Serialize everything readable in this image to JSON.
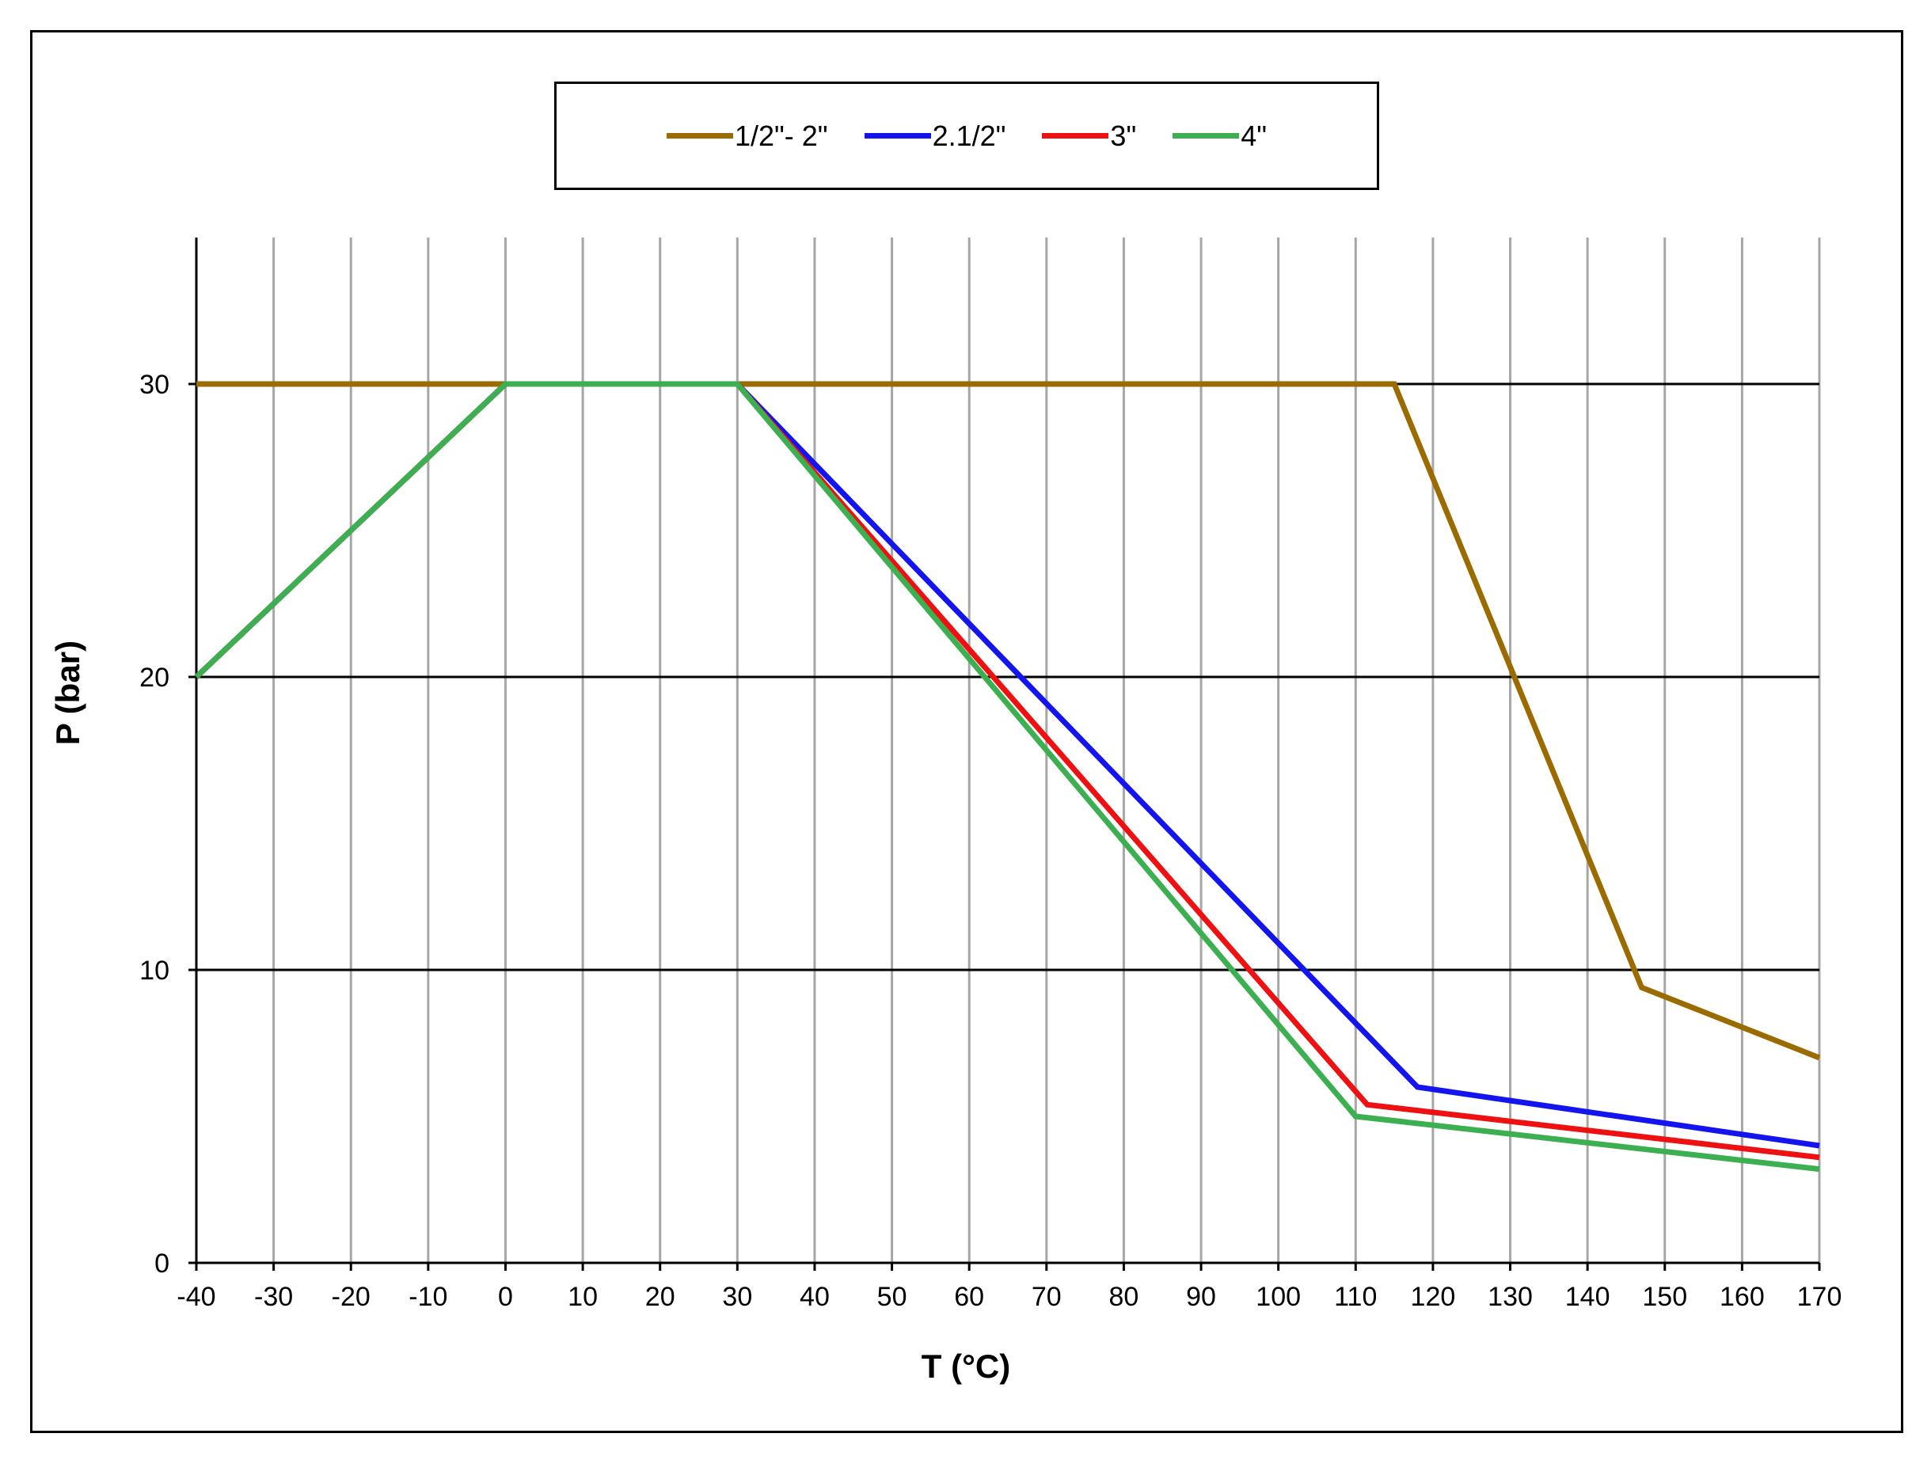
{
  "chart_data": {
    "type": "line",
    "title": "",
    "xlabel": "T (°C)",
    "ylabel": "P (bar)",
    "xlim": [
      -40,
      170
    ],
    "ylim": [
      0,
      35
    ],
    "x_ticks": [
      -40,
      -30,
      -20,
      -10,
      0,
      10,
      20,
      30,
      40,
      50,
      60,
      70,
      80,
      90,
      100,
      110,
      120,
      130,
      140,
      150,
      160,
      170
    ],
    "y_ticks": [
      0,
      10,
      20,
      30
    ],
    "vertical_grid": true,
    "horizontal_grid": true,
    "legend_position": "top-center",
    "series": [
      {
        "name": "1/2\"- 2\"",
        "color": "#9C6B00",
        "points": [
          [
            -40,
            30
          ],
          [
            115,
            30
          ],
          [
            147,
            9.4
          ],
          [
            170,
            7
          ]
        ]
      },
      {
        "name": "2.1/2\"",
        "color": "#1414EE",
        "points": [
          [
            -40,
            20
          ],
          [
            0,
            30
          ],
          [
            30,
            30
          ],
          [
            118,
            6
          ],
          [
            170,
            4
          ]
        ]
      },
      {
        "name": "3\"",
        "color": "#EE1111",
        "points": [
          [
            -40,
            20
          ],
          [
            0,
            30
          ],
          [
            30,
            30
          ],
          [
            111.5,
            5.4
          ],
          [
            170,
            3.6
          ]
        ]
      },
      {
        "name": "4\"",
        "color": "#3CAF50",
        "points": [
          [
            -40,
            20
          ],
          [
            0,
            30
          ],
          [
            30,
            30
          ],
          [
            110,
            5
          ],
          [
            170,
            3.2
          ]
        ]
      }
    ]
  }
}
